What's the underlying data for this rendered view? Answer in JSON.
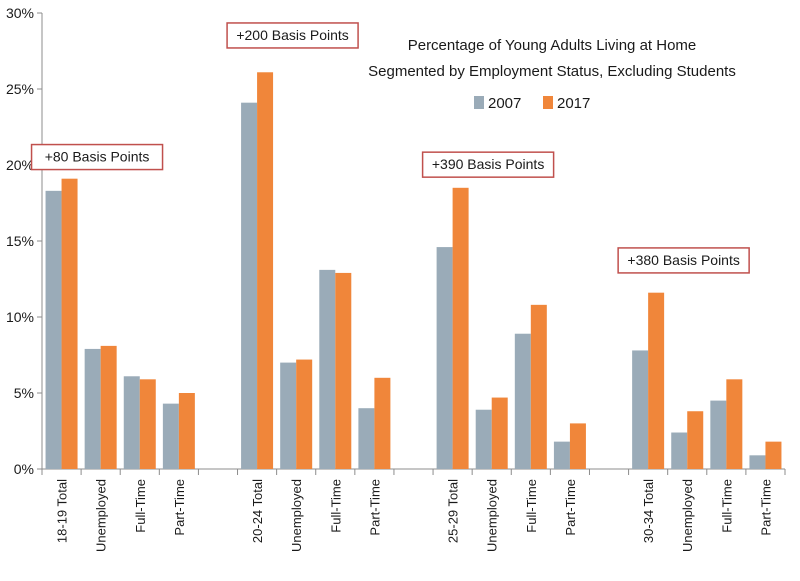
{
  "chart_data": {
    "type": "bar",
    "title": "Percentage of Young Adults Living at Home",
    "subtitle": "Segmented by Employment Status, Excluding Students",
    "ylim": [
      0,
      30
    ],
    "yticks": [
      0,
      5,
      10,
      15,
      20,
      25,
      30
    ],
    "ytick_labels": [
      "0%",
      "5%",
      "10%",
      "15%",
      "20%",
      "25%",
      "30%"
    ],
    "grid": false,
    "legend": "top-right",
    "categories": [
      "18-19 Total",
      "Unemployed",
      "Full-Time",
      "Part-Time",
      "",
      "20-24 Total",
      "Unemployed",
      "Full-Time",
      "Part-Time",
      "",
      "25-29 Total",
      "Unemployed",
      "Full-Time",
      "Part-Time",
      "",
      "30-34 Total",
      "Unemployed",
      "Full-Time",
      "Part-Time"
    ],
    "series": [
      {
        "name": "2007",
        "color": "#9aabb8",
        "values": [
          18.3,
          7.9,
          6.1,
          4.3,
          null,
          24.1,
          7.0,
          13.1,
          4.0,
          null,
          14.6,
          3.9,
          8.9,
          1.8,
          null,
          7.8,
          2.4,
          4.5,
          0.9
        ]
      },
      {
        "name": "2017",
        "color": "#f0863a",
        "values": [
          19.1,
          8.1,
          5.9,
          5.0,
          null,
          26.1,
          7.2,
          12.9,
          6.0,
          null,
          18.5,
          4.7,
          10.8,
          3.0,
          null,
          11.6,
          3.8,
          5.9,
          1.8
        ]
      }
    ],
    "annotations": [
      {
        "text": "+80 Basis Points",
        "category_index": 0,
        "value": 19.7
      },
      {
        "text": "+200 Basis Points",
        "category_index": 5,
        "value": 27.7
      },
      {
        "text": "+390 Basis Points",
        "category_index": 10,
        "value": 19.2
      },
      {
        "text": "+380 Basis Points",
        "category_index": 15,
        "value": 12.9
      }
    ]
  }
}
